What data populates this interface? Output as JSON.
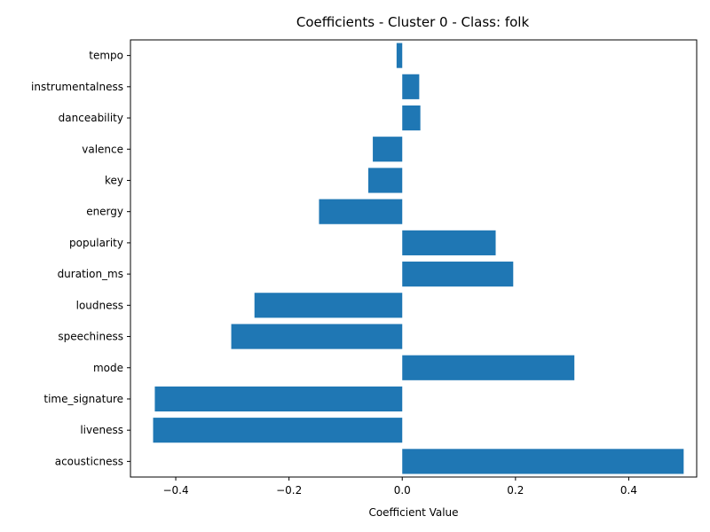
{
  "chart_data": {
    "type": "bar",
    "orientation": "horizontal",
    "title": "Coefficients - Cluster 0 - Class: folk",
    "xlabel": "Coefficient Value",
    "ylabel": "",
    "xlim": [
      -0.48,
      0.52
    ],
    "xticks": [
      -0.4,
      -0.2,
      0.0,
      0.2,
      0.4
    ],
    "xtick_labels": [
      "−0.4",
      "−0.2",
      "0.0",
      "0.2",
      "0.4"
    ],
    "grid": false,
    "bar_color": "#1f77b4",
    "categories": [
      "acousticness",
      "liveness",
      "time_signature",
      "mode",
      "speechiness",
      "loudness",
      "duration_ms",
      "popularity",
      "energy",
      "key",
      "valence",
      "danceability",
      "instrumentalness",
      "tempo"
    ],
    "values": [
      0.497,
      -0.44,
      -0.437,
      0.304,
      -0.302,
      -0.261,
      0.196,
      0.165,
      -0.147,
      -0.06,
      -0.052,
      0.032,
      0.03,
      -0.01
    ]
  }
}
